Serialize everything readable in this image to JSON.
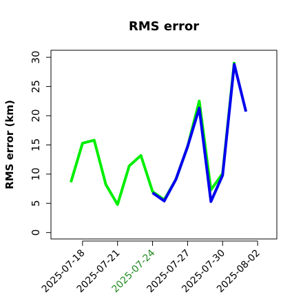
{
  "chart_data": {
    "type": "line",
    "title": "RMS error",
    "y_label": "RMS error (km)",
    "x": [
      "2025-07-17",
      "2025-07-18",
      "2025-07-19",
      "2025-07-20",
      "2025-07-21",
      "2025-07-22",
      "2025-07-23",
      "2025-07-24",
      "2025-07-25",
      "2025-07-26",
      "2025-07-27",
      "2025-07-28",
      "2025-07-29",
      "2025-07-30",
      "2025-07-31",
      "2025-08-01"
    ],
    "series": [
      {
        "color": "#00ee00",
        "values": [
          8.6,
          15.3,
          15.8,
          8.2,
          4.8,
          11.4,
          13.2,
          7.0,
          5.6,
          9.1,
          14.7,
          22.5,
          7.3,
          10.1,
          29.2,
          null
        ]
      },
      {
        "color": "#0000ee",
        "values": [
          null,
          null,
          null,
          null,
          null,
          null,
          null,
          6.8,
          5.4,
          9.1,
          14.7,
          21.3,
          5.3,
          9.8,
          28.8,
          20.7
        ]
      }
    ],
    "xlim": [
      "2025-07-15",
      "2025-08-04"
    ],
    "xticks": [
      "2025-07-18",
      "2025-07-21",
      "2025-07-24",
      "2025-07-27",
      "2025-07-30",
      "2025-08-02"
    ],
    "xtick_colors": [
      "#000000",
      "#000000",
      "#228b22",
      "#000000",
      "#000000",
      "#000000"
    ],
    "ylim": [
      -1.1,
      31.2
    ],
    "yticks": [
      0,
      5,
      10,
      15,
      20,
      25,
      30
    ]
  }
}
